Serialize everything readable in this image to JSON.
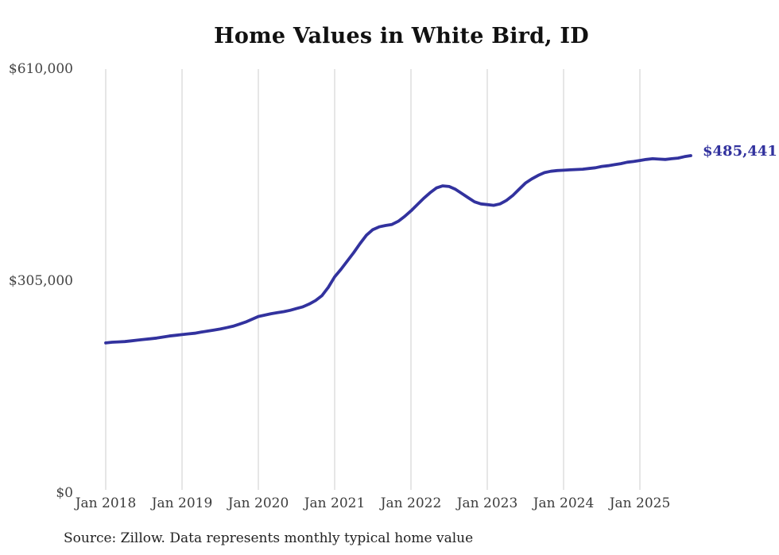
{
  "title": "Home Values in White Bird, ID",
  "end_label": "$485,441",
  "source_note": "Source: Zillow. Data represents monthly typical home value",
  "colors": {
    "line": "#32329e",
    "grid": "#cccccc",
    "title_text": "#111111",
    "axis_label_text": "#444444",
    "note_text": "#222222"
  },
  "y_axis": {
    "ticks": [
      "$610,000",
      "$305,000",
      "$0"
    ]
  },
  "x_axis": {
    "ticks": [
      "Jan 2018",
      "Jan 2019",
      "Jan 2020",
      "Jan 2021",
      "Jan 2022",
      "Jan 2023",
      "Jan 2024",
      "Jan 2025"
    ]
  },
  "chart_data": {
    "type": "line",
    "title": "Home Values in White Bird, ID",
    "xlabel": "",
    "ylabel": "",
    "ylim": [
      0,
      610000
    ],
    "y_tick_values": [
      610000,
      305000,
      0
    ],
    "y_tick_labels": [
      "$610,000",
      "$305,000",
      "$0"
    ],
    "x_tick_labels": [
      "Jan 2018",
      "Jan 2019",
      "Jan 2020",
      "Jan 2021",
      "Jan 2022",
      "Jan 2023",
      "Jan 2024",
      "Jan 2025"
    ],
    "grid": "vertical-only",
    "legend": "none",
    "annotation": "$485,441",
    "series": [
      {
        "name": "Monthly typical home value (USD)",
        "start_month": "2018-01",
        "end_month": "2025-09",
        "interval": "monthly",
        "final_value": 485441,
        "values": [
          216000,
          217000,
          217500,
          218000,
          219000,
          220000,
          221000,
          222000,
          223000,
          224500,
          226000,
          227000,
          228000,
          229000,
          230000,
          231500,
          233000,
          234500,
          236000,
          238000,
          240000,
          243000,
          246000,
          250000,
          254000,
          256000,
          258000,
          259500,
          261000,
          263000,
          265500,
          268000,
          272000,
          277000,
          284000,
          296000,
          311000,
          322000,
          334000,
          346000,
          359000,
          371000,
          379000,
          383000,
          385000,
          386500,
          391000,
          398000,
          406000,
          415000,
          424000,
          432000,
          439000,
          442000,
          441000,
          437000,
          431000,
          425000,
          419000,
          416000,
          415000,
          414000,
          416000,
          421000,
          428000,
          437000,
          446000,
          452000,
          457000,
          461000,
          463000,
          464000,
          464500,
          465000,
          465500,
          466000,
          467000,
          468000,
          470000,
          471000,
          472500,
          474000,
          476000,
          477000,
          478500,
          480000,
          481000,
          480500,
          480000,
          481000,
          482000,
          484000,
          485441
        ]
      }
    ]
  }
}
